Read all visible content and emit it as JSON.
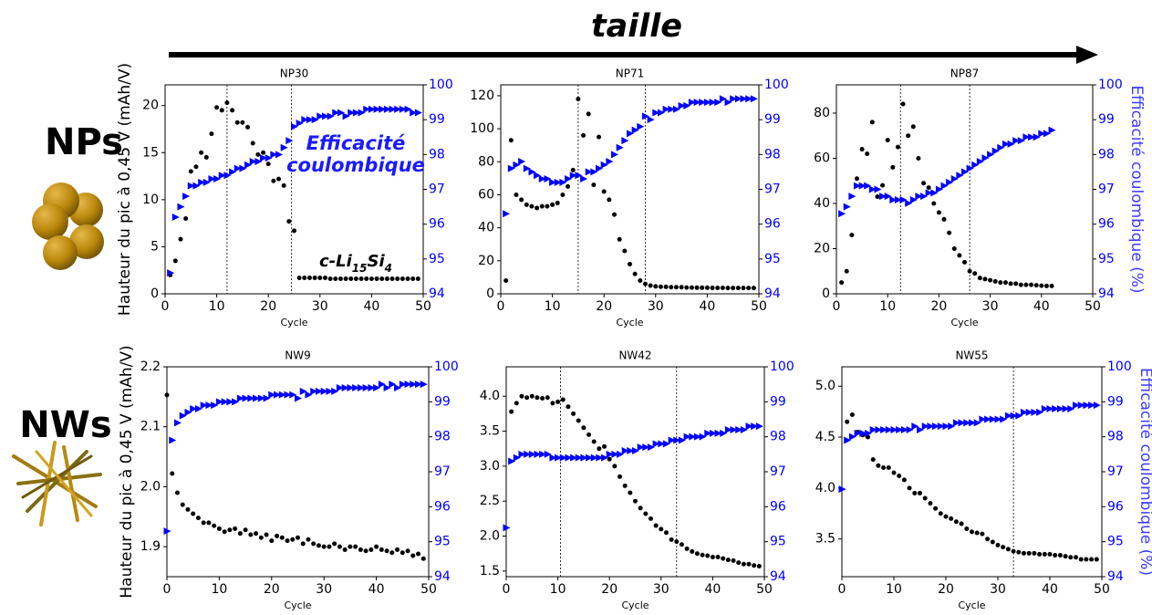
{
  "header": {
    "title": "taille"
  },
  "row_labels": [
    "NPs",
    "NWs"
  ],
  "chart_data": [
    {
      "type": "scatter",
      "title": "NP30",
      "x_label": "Cycle",
      "ylabel": "Hauteur du pic à 0,45 V (mAh/V)",
      "xlim": [
        0,
        50
      ],
      "xticks": [
        0,
        10,
        20,
        30,
        40,
        50
      ],
      "ylim": [
        0,
        22.2
      ],
      "yticks": [
        0,
        5,
        10,
        15,
        20
      ],
      "y2lim": [
        94,
        100
      ],
      "y2ticks": [
        94,
        95,
        96,
        97,
        98,
        99,
        100
      ],
      "vlines": [
        12,
        24.5
      ],
      "annotations": [
        "Efficacité coulombique",
        "c-Li15Si4"
      ],
      "x": [
        1,
        2,
        3,
        4,
        5,
        6,
        7,
        8,
        9,
        10,
        11,
        12,
        13,
        14,
        15,
        16,
        17,
        18,
        19,
        20,
        21,
        22,
        23,
        24,
        25,
        26,
        27,
        28,
        29,
        30,
        31,
        32,
        33,
        34,
        35,
        36,
        37,
        38,
        39,
        40,
        41,
        42,
        43,
        44,
        45,
        46,
        47,
        48,
        49
      ],
      "series": [
        {
          "color": "#000000",
          "marker": "circle",
          "values": [
            2.0,
            3.5,
            5.8,
            8.0,
            13.0,
            13.5,
            15.0,
            14.5,
            17.0,
            19.8,
            19.5,
            20.3,
            19.5,
            18.2,
            18.2,
            17.7,
            16.0,
            14.8,
            15.0,
            13.8,
            12.0,
            12.2,
            11.5,
            7.7,
            6.7,
            1.7,
            1.7,
            1.7,
            1.7,
            1.7,
            1.7,
            1.6,
            1.6,
            1.6,
            1.6,
            1.6,
            1.6,
            1.6,
            1.6,
            1.6,
            1.6,
            1.6,
            1.6,
            1.6,
            1.6,
            1.6,
            1.6,
            1.6,
            1.6
          ]
        },
        {
          "color": "#0000ff",
          "marker": "triangle",
          "axis": "y2",
          "values": [
            94.6,
            96.2,
            96.5,
            96.8,
            97.1,
            97.1,
            97.2,
            97.2,
            97.3,
            97.3,
            97.4,
            97.4,
            97.5,
            97.6,
            97.6,
            97.7,
            97.8,
            97.8,
            97.9,
            97.9,
            98.0,
            98.0,
            98.2,
            98.4,
            98.8,
            98.9,
            99.0,
            99.0,
            99.0,
            99.1,
            99.1,
            99.1,
            99.2,
            99.2,
            99.1,
            99.2,
            99.2,
            99.2,
            99.3,
            99.3,
            99.3,
            99.3,
            99.3,
            99.3,
            99.3,
            99.3,
            99.3,
            99.2,
            99.2
          ]
        }
      ]
    },
    {
      "type": "scatter",
      "title": "NP71",
      "x_label": "Cycle",
      "xlim": [
        0,
        50
      ],
      "xticks": [
        0,
        10,
        20,
        30,
        40,
        50
      ],
      "ylim": [
        0,
        126.6
      ],
      "yticks": [
        0,
        20,
        40,
        60,
        80,
        100,
        120
      ],
      "y2lim": [
        94,
        100
      ],
      "y2ticks": [
        94,
        95,
        96,
        97,
        98,
        99,
        100
      ],
      "vlines": [
        15,
        28
      ],
      "x": [
        1,
        2,
        3,
        4,
        5,
        6,
        7,
        8,
        9,
        10,
        11,
        12,
        13,
        14,
        15,
        16,
        17,
        18,
        19,
        20,
        21,
        22,
        23,
        24,
        25,
        26,
        27,
        28,
        29,
        30,
        31,
        32,
        33,
        34,
        35,
        36,
        37,
        38,
        39,
        40,
        41,
        42,
        43,
        44,
        45,
        46,
        47,
        48,
        49
      ],
      "series": [
        {
          "color": "#000000",
          "marker": "circle",
          "values": [
            8,
            93,
            60,
            57,
            54,
            53,
            52,
            53,
            53,
            54,
            55,
            60,
            65,
            75,
            118,
            96,
            109,
            66,
            95,
            62,
            57,
            48,
            33,
            26,
            18,
            12,
            8,
            6,
            5,
            4.5,
            4.3,
            4.2,
            4,
            4,
            4,
            3.8,
            3.8,
            3.7,
            3.7,
            3.7,
            3.6,
            3.6,
            3.6,
            3.5,
            3.5,
            3.5,
            3.5,
            3.5,
            3.5
          ]
        },
        {
          "color": "#0000ff",
          "marker": "triangle",
          "axis": "y2",
          "values": [
            96.3,
            97.6,
            97.7,
            97.8,
            97.6,
            97.5,
            97.4,
            97.3,
            97.3,
            97.2,
            97.2,
            97.2,
            97.3,
            97.4,
            97.4,
            97.3,
            97.5,
            97.5,
            97.6,
            97.7,
            97.8,
            98.0,
            98.2,
            98.4,
            98.6,
            98.7,
            98.8,
            99.1,
            99.0,
            99.2,
            99.2,
            99.3,
            99.3,
            99.3,
            99.4,
            99.4,
            99.5,
            99.5,
            99.5,
            99.5,
            99.5,
            99.5,
            99.6,
            99.5,
            99.6,
            99.6,
            99.6,
            99.6,
            99.6
          ]
        }
      ]
    },
    {
      "type": "scatter",
      "title": "NP87",
      "x_label": "Cycle",
      "y2label": "Efficacité coulombique (%)",
      "xlim": [
        0,
        50
      ],
      "xticks": [
        0,
        10,
        20,
        30,
        40,
        50
      ],
      "ylim": [
        0,
        92.5
      ],
      "yticks": [
        0,
        20,
        40,
        60,
        80
      ],
      "y2lim": [
        94,
        100
      ],
      "y2ticks": [
        94,
        95,
        96,
        97,
        98,
        99,
        100
      ],
      "vlines": [
        12.5,
        26
      ],
      "x": [
        1,
        2,
        3,
        4,
        5,
        6,
        7,
        8,
        9,
        10,
        11,
        12,
        13,
        14,
        15,
        16,
        17,
        18,
        19,
        20,
        21,
        22,
        23,
        24,
        25,
        26,
        27,
        28,
        29,
        30,
        31,
        32,
        33,
        34,
        35,
        36,
        37,
        38,
        39,
        40,
        41,
        42
      ],
      "series": [
        {
          "color": "#000000",
          "marker": "circle",
          "values": [
            5,
            10,
            26,
            51,
            64,
            62,
            76,
            43,
            48,
            68,
            56,
            65,
            84,
            70,
            74,
            60,
            49,
            47,
            40,
            36,
            33,
            27,
            20,
            17,
            14,
            10,
            9,
            7,
            6.5,
            6,
            5.5,
            5,
            5,
            4.5,
            4.5,
            4,
            4,
            4,
            3.8,
            3.6,
            3.5,
            3.5
          ]
        },
        {
          "color": "#0000ff",
          "marker": "triangle",
          "axis": "y2",
          "values": [
            96.3,
            96.5,
            96.8,
            97.1,
            97.1,
            97.1,
            97.0,
            97.0,
            96.8,
            96.8,
            96.7,
            96.7,
            96.7,
            96.6,
            96.7,
            96.8,
            96.8,
            96.9,
            96.9,
            97.0,
            97.1,
            97.2,
            97.3,
            97.4,
            97.5,
            97.6,
            97.7,
            97.8,
            97.9,
            98.0,
            98.1,
            98.2,
            98.3,
            98.3,
            98.4,
            98.4,
            98.5,
            98.5,
            98.5,
            98.6,
            98.6,
            98.7
          ]
        }
      ]
    },
    {
      "type": "scatter",
      "title": "NW9",
      "x_label": "Cycle",
      "ylabel": "Hauteur du pic à 0,45 V (mAh/V)",
      "xlim": [
        0,
        50
      ],
      "xticks": [
        0,
        10,
        20,
        30,
        40,
        50
      ],
      "ylim": [
        1.85,
        2.2
      ],
      "yticks": [
        1.9,
        {
          "value": 2.0,
          "label": "2.0"
        },
        2.1,
        2.2
      ],
      "y2lim": [
        94,
        100
      ],
      "y2ticks": [
        94,
        95,
        96,
        97,
        98,
        99,
        100
      ],
      "vlines": [],
      "x": [
        0,
        1,
        2,
        3,
        4,
        5,
        6,
        7,
        8,
        9,
        10,
        11,
        12,
        13,
        14,
        15,
        16,
        17,
        18,
        19,
        20,
        21,
        22,
        23,
        24,
        25,
        26,
        27,
        28,
        29,
        30,
        31,
        32,
        33,
        34,
        35,
        36,
        37,
        38,
        39,
        40,
        41,
        42,
        43,
        44,
        45,
        46,
        47,
        48,
        49
      ],
      "series": [
        {
          "color": "#000000",
          "marker": "circle",
          "values": [
            2.153,
            2.022,
            1.99,
            1.97,
            1.962,
            1.955,
            1.948,
            1.94,
            1.94,
            1.935,
            1.93,
            1.925,
            1.928,
            1.93,
            1.922,
            1.928,
            1.92,
            1.922,
            1.915,
            1.92,
            1.91,
            1.918,
            1.915,
            1.91,
            1.912,
            1.915,
            1.905,
            1.912,
            1.905,
            1.902,
            1.9,
            1.9,
            1.905,
            1.9,
            1.895,
            1.9,
            1.9,
            1.895,
            1.893,
            1.895,
            1.9,
            1.895,
            1.893,
            1.89,
            1.895,
            1.89,
            1.893,
            1.885,
            1.888,
            1.88
          ]
        },
        {
          "color": "#0000ff",
          "marker": "triangle",
          "axis": "y2",
          "values": [
            95.3,
            97.9,
            98.4,
            98.6,
            98.7,
            98.8,
            98.8,
            98.9,
            98.9,
            98.9,
            99.0,
            99.0,
            99.0,
            99.0,
            99.1,
            99.1,
            99.1,
            99.1,
            99.1,
            99.1,
            99.2,
            99.2,
            99.2,
            99.2,
            99.2,
            99.1,
            99.3,
            99.2,
            99.3,
            99.3,
            99.3,
            99.3,
            99.3,
            99.4,
            99.4,
            99.4,
            99.4,
            99.4,
            99.4,
            99.4,
            99.4,
            99.5,
            99.4,
            99.5,
            99.4,
            99.5,
            99.5,
            99.5,
            99.5,
            99.5
          ]
        }
      ]
    },
    {
      "type": "scatter",
      "title": "NW42",
      "x_label": "Cycle",
      "xlim": [
        0,
        50
      ],
      "xticks": [
        0,
        10,
        20,
        30,
        40,
        50
      ],
      "ylim": [
        1.42,
        4.42
      ],
      "yticks": [
        1.5,
        {
          "value": 2,
          "label": "2.0"
        },
        2.5,
        {
          "value": 3,
          "label": "3.0"
        },
        3.5,
        {
          "value": 4,
          "label": "4.0"
        }
      ],
      "y2lim": [
        94,
        100
      ],
      "y2ticks": [
        94,
        95,
        96,
        97,
        98,
        99,
        100
      ],
      "vlines": [
        10.5,
        33
      ],
      "x": [
        0,
        1,
        2,
        3,
        4,
        5,
        6,
        7,
        8,
        9,
        10,
        11,
        12,
        13,
        14,
        15,
        16,
        17,
        18,
        19,
        20,
        21,
        22,
        23,
        24,
        25,
        26,
        27,
        28,
        29,
        30,
        31,
        32,
        33,
        34,
        35,
        36,
        37,
        38,
        39,
        40,
        41,
        42,
        43,
        44,
        45,
        46,
        47,
        48,
        49
      ],
      "series": [
        {
          "color": "#000000",
          "marker": "circle",
          "values": [
            null,
            3.78,
            3.9,
            4.0,
            3.98,
            4.0,
            3.98,
            3.97,
            3.98,
            3.9,
            3.92,
            3.95,
            3.85,
            3.75,
            3.65,
            3.55,
            3.45,
            3.35,
            3.25,
            3.28,
            3.1,
            3.0,
            2.85,
            2.72,
            2.62,
            2.5,
            2.4,
            2.32,
            2.25,
            2.15,
            2.1,
            2.05,
            1.95,
            1.92,
            1.88,
            1.82,
            1.78,
            1.75,
            1.73,
            1.72,
            1.7,
            1.7,
            1.68,
            1.66,
            1.65,
            1.62,
            1.6,
            1.6,
            1.58,
            1.57
          ]
        },
        {
          "color": "#0000ff",
          "marker": "triangle",
          "axis": "y2",
          "values": [
            95.4,
            97.3,
            97.4,
            97.5,
            97.5,
            97.5,
            97.5,
            97.5,
            97.5,
            97.4,
            97.4,
            97.4,
            97.4,
            97.4,
            97.4,
            97.4,
            97.4,
            97.4,
            97.4,
            97.4,
            97.5,
            97.5,
            97.5,
            97.6,
            97.6,
            97.6,
            97.7,
            97.7,
            97.7,
            97.8,
            97.8,
            97.8,
            97.9,
            97.9,
            97.9,
            98.0,
            98.0,
            98.0,
            98.0,
            98.1,
            98.1,
            98.1,
            98.1,
            98.2,
            98.2,
            98.2,
            98.2,
            98.3,
            98.3,
            98.3
          ]
        }
      ]
    },
    {
      "type": "scatter",
      "title": "NW55",
      "x_label": "Cycle",
      "y2label": "Efficacité coulombique (%)",
      "xlim": [
        0,
        50
      ],
      "xticks": [
        0,
        10,
        20,
        30,
        40,
        50
      ],
      "ylim": [
        3.13,
        5.19
      ],
      "yticks": [
        3.5,
        {
          "value": 4,
          "label": "4.0"
        },
        4.5,
        {
          "value": 5,
          "label": "5.0"
        }
      ],
      "y2lim": [
        94,
        100
      ],
      "y2ticks": [
        94,
        95,
        96,
        97,
        98,
        99,
        100
      ],
      "vlines": [
        33
      ],
      "x": [
        0,
        1,
        2,
        3,
        4,
        5,
        6,
        7,
        8,
        9,
        10,
        11,
        12,
        13,
        14,
        15,
        16,
        17,
        18,
        19,
        20,
        21,
        22,
        23,
        24,
        25,
        26,
        27,
        28,
        29,
        30,
        31,
        32,
        33,
        34,
        35,
        36,
        37,
        38,
        39,
        40,
        41,
        42,
        43,
        44,
        45,
        46,
        47,
        48,
        49
      ],
      "series": [
        {
          "color": "#000000",
          "marker": "circle",
          "values": [
            null,
            4.65,
            4.72,
            4.55,
            4.52,
            4.5,
            4.28,
            4.22,
            4.2,
            4.2,
            4.15,
            4.12,
            4.08,
            4.0,
            3.95,
            3.95,
            3.9,
            3.85,
            3.8,
            3.75,
            3.72,
            3.7,
            3.67,
            3.65,
            3.6,
            3.57,
            3.56,
            3.55,
            3.5,
            3.47,
            3.44,
            3.42,
            3.4,
            3.38,
            3.37,
            3.36,
            3.36,
            3.36,
            3.35,
            3.35,
            3.35,
            3.34,
            3.34,
            3.33,
            3.32,
            3.32,
            3.3,
            3.3,
            3.3,
            3.3
          ]
        },
        {
          "color": "#0000ff",
          "marker": "triangle",
          "axis": "y2",
          "values": [
            96.5,
            97.9,
            98.0,
            98.1,
            98.1,
            98.1,
            98.2,
            98.2,
            98.2,
            98.2,
            98.2,
            98.2,
            98.2,
            98.2,
            98.3,
            98.2,
            98.3,
            98.3,
            98.3,
            98.3,
            98.3,
            98.3,
            98.4,
            98.4,
            98.4,
            98.4,
            98.4,
            98.5,
            98.5,
            98.5,
            98.5,
            98.5,
            98.6,
            98.6,
            98.6,
            98.7,
            98.7,
            98.7,
            98.7,
            98.8,
            98.8,
            98.8,
            98.8,
            98.8,
            98.8,
            98.9,
            98.9,
            98.9,
            98.9,
            98.9
          ]
        }
      ]
    }
  ]
}
